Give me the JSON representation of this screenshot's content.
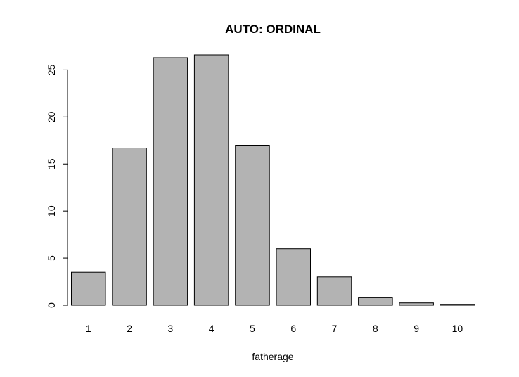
{
  "chart_data": {
    "type": "bar",
    "title": "AUTO: ORDINAL",
    "xlabel": "fatherage",
    "ylabel": "",
    "categories": [
      "1",
      "2",
      "3",
      "4",
      "5",
      "6",
      "7",
      "8",
      "9",
      "10"
    ],
    "values": [
      3.5,
      16.7,
      26.3,
      26.6,
      17.0,
      6.0,
      3.0,
      0.85,
      0.25,
      0.1
    ],
    "yticks": [
      0,
      5,
      10,
      15,
      20,
      25
    ],
    "ylim": [
      0,
      26.6
    ],
    "grid": false,
    "colors": {
      "bar_fill": "#b3b3b3",
      "bar_stroke": "#000000"
    }
  }
}
